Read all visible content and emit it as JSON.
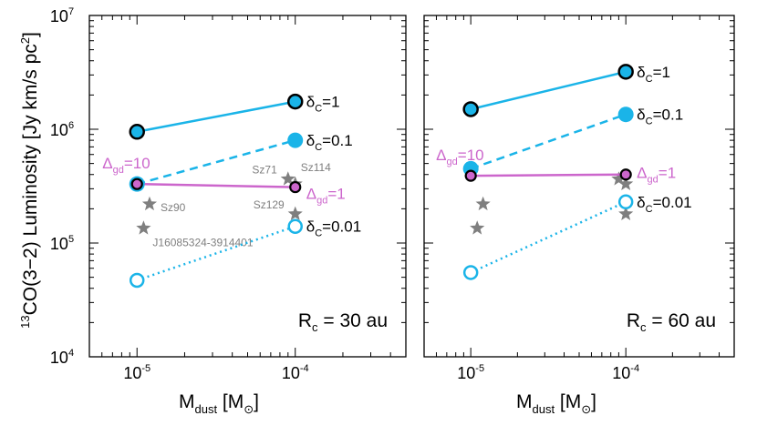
{
  "figure": {
    "ylabel_pre": "13",
    "ylabel_main": "CO(3−2) Luminosity [Jy km/s pc",
    "ylabel_sup": "2",
    "ylabel_post": "]",
    "xlabel_main": "M",
    "xlabel_sub": "dust",
    "xlabel_post": " [M",
    "xlabel_sun": "⊙",
    "xlabel_end": "]"
  },
  "colors": {
    "cyan": "#1ab4e8",
    "magenta": "#cc66cc",
    "gray": "#7f7f7f",
    "black": "#000000"
  },
  "chart_data": [
    {
      "type": "line",
      "panel": "left",
      "annotation": "R<sub>c</sub> = 30 au",
      "annotation_text": "Rc = 30 au",
      "xscale": "log",
      "yscale": "log",
      "xlim": [
        5e-06,
        0.0005
      ],
      "ylim": [
        10000.0,
        10000000.0
      ],
      "xticks": [
        {
          "label_base": "10",
          "label_exp": "-5",
          "value": 1e-05
        },
        {
          "label_base": "10",
          "label_exp": "-4",
          "value": 0.0001
        }
      ],
      "yticks": [
        {
          "label_base": "10",
          "label_exp": "4",
          "value": 10000.0
        },
        {
          "label_base": "10",
          "label_exp": "5",
          "value": 100000.0
        },
        {
          "label_base": "10",
          "label_exp": "6",
          "value": 1000000.0
        },
        {
          "label_base": "10",
          "label_exp": "7",
          "value": 10000000.0
        }
      ],
      "series": [
        {
          "label": "δc=1",
          "label_main": "δ",
          "label_sub": "C",
          "label_post": "=1",
          "style": "solid",
          "color": "#1ab4e8",
          "marker": "filled-black-edge",
          "x": [
            1e-05,
            0.0001
          ],
          "y": [
            950000,
            1750000
          ]
        },
        {
          "label": "δc=0.1",
          "label_main": "δ",
          "label_sub": "C",
          "label_post": "=0.1",
          "style": "dashed",
          "color": "#1ab4e8",
          "marker": "filled",
          "x": [
            1e-05,
            0.0001
          ],
          "y": [
            330000,
            800000
          ]
        },
        {
          "label": "δc=0.01",
          "label_main": "δ",
          "label_sub": "C",
          "label_post": "=0.01",
          "style": "dotted",
          "color": "#1ab4e8",
          "marker": "open",
          "x": [
            1e-05,
            0.0001
          ],
          "y": [
            47000,
            140000
          ]
        },
        {
          "label": "Δgd",
          "style": "solid",
          "color": "#cc66cc",
          "marker": "magenta-black-edge",
          "x": [
            1e-05,
            0.0001
          ],
          "y": [
            330000,
            310000
          ],
          "point_labels": [
            {
              "main": "Δ",
              "sub": "gd",
              "post": "=10"
            },
            {
              "main": "Δ",
              "sub": "gd",
              "post": "=1"
            }
          ]
        }
      ],
      "stars": [
        {
          "name": "Sz90",
          "x": 1.2e-05,
          "y": 220000
        },
        {
          "name": "J16085324-3914401",
          "x": 1.1e-05,
          "y": 135000
        },
        {
          "name": "Sz71",
          "x": 9e-05,
          "y": 365000
        },
        {
          "name": "Sz114",
          "x": 0.0001,
          "y": 330000
        },
        {
          "name": "Sz129",
          "x": 0.0001,
          "y": 180000
        }
      ]
    },
    {
      "type": "line",
      "panel": "right",
      "annotation_text": "Rc = 60 au",
      "xscale": "log",
      "yscale": "log",
      "xlim": [
        5e-06,
        0.0005
      ],
      "ylim": [
        10000.0,
        10000000.0
      ],
      "xticks": [
        {
          "label_base": "10",
          "label_exp": "-5",
          "value": 1e-05
        },
        {
          "label_base": "10",
          "label_exp": "-4",
          "value": 0.0001
        }
      ],
      "series": [
        {
          "label": "δc=1",
          "label_main": "δ",
          "label_sub": "C",
          "label_post": "=1",
          "style": "solid",
          "color": "#1ab4e8",
          "marker": "filled-black-edge",
          "x": [
            1e-05,
            0.0001
          ],
          "y": [
            1500000,
            3200000
          ]
        },
        {
          "label": "δc=0.1",
          "label_main": "δ",
          "label_sub": "C",
          "label_post": "=0.1",
          "style": "dashed",
          "color": "#1ab4e8",
          "marker": "filled",
          "x": [
            1e-05,
            0.0001
          ],
          "y": [
            450000,
            1350000
          ]
        },
        {
          "label": "δc=0.01",
          "label_main": "δ",
          "label_sub": "C",
          "label_post": "=0.01",
          "style": "dotted",
          "color": "#1ab4e8",
          "marker": "open",
          "x": [
            1e-05,
            0.0001
          ],
          "y": [
            55000,
            230000
          ]
        },
        {
          "label": "Δgd",
          "style": "solid",
          "color": "#cc66cc",
          "marker": "magenta-black-edge",
          "x": [
            1e-05,
            0.0001
          ],
          "y": [
            390000,
            400000
          ],
          "point_labels": [
            {
              "main": "Δ",
              "sub": "gd",
              "post": "=10"
            },
            {
              "main": "Δ",
              "sub": "gd",
              "post": "=1"
            }
          ]
        }
      ],
      "stars": [
        {
          "name": "",
          "x": 1.2e-05,
          "y": 220000
        },
        {
          "name": "",
          "x": 1.1e-05,
          "y": 135000
        },
        {
          "name": "",
          "x": 9e-05,
          "y": 365000
        },
        {
          "name": "",
          "x": 0.0001,
          "y": 330000
        },
        {
          "name": "",
          "x": 0.0001,
          "y": 180000
        }
      ]
    }
  ]
}
